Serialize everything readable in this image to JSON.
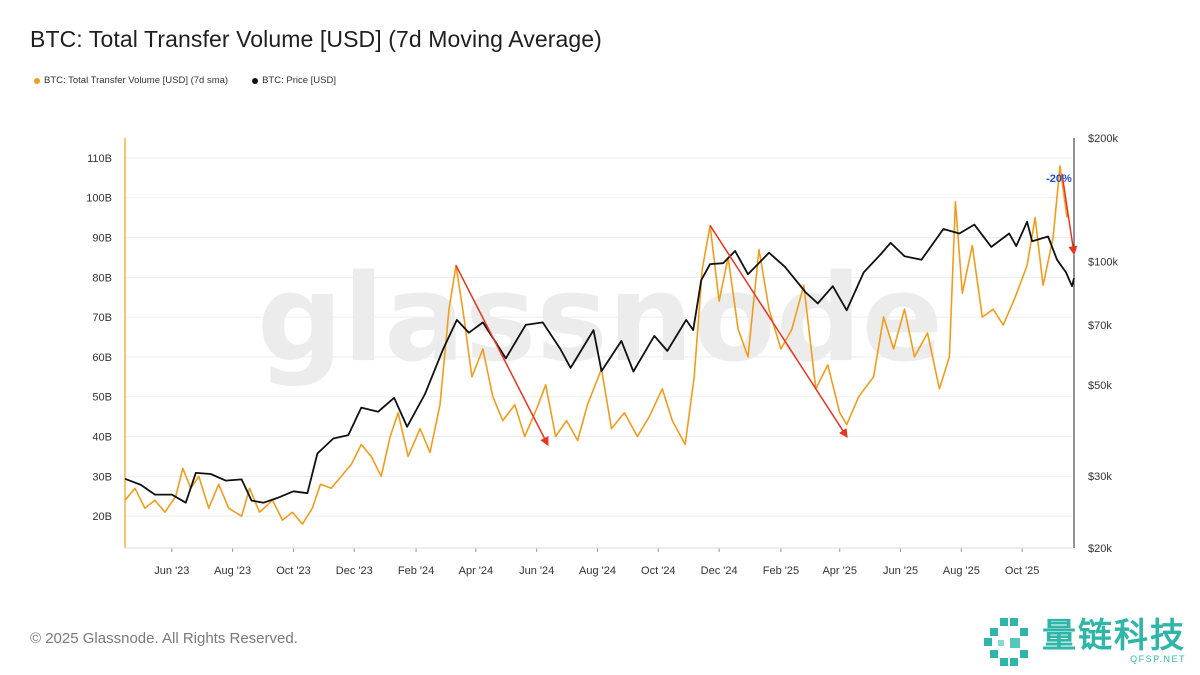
{
  "title": "BTC: Total Transfer Volume [USD] (7d Moving Average)",
  "legend": [
    {
      "label": "BTC: Total Transfer Volume [USD] (7d sma)",
      "color": "#f39c1c"
    },
    {
      "label": "BTC: Price [USD]",
      "color": "#111111"
    }
  ],
  "watermark": "glassnode",
  "copyright": "© 2025 Glassnode. All Rights Reserved.",
  "logo": {
    "name": "量链科技",
    "url": "QFSP.NET",
    "color": "#2fb6a8"
  },
  "chart_data": {
    "type": "line",
    "title": "BTC: Total Transfer Volume [USD] (7d Moving Average)",
    "x_range": [
      "2023-04-15",
      "2025-11-20"
    ],
    "x_ticks": [
      "Jun '23",
      "Aug '23",
      "Oct '23",
      "Dec '23",
      "Feb '24",
      "Apr '24",
      "Jun '24",
      "Aug '24",
      "Oct '24",
      "Dec '24",
      "Feb '25",
      "Apr '25",
      "Jun '25",
      "Aug '25",
      "Oct '25"
    ],
    "x_tick_dates": [
      "2023-06-01",
      "2023-08-01",
      "2023-10-01",
      "2023-12-01",
      "2024-02-01",
      "2024-04-01",
      "2024-06-01",
      "2024-08-01",
      "2024-10-01",
      "2024-12-01",
      "2025-02-01",
      "2025-04-01",
      "2025-06-01",
      "2025-08-01",
      "2025-10-01"
    ],
    "y_left": {
      "unit": "USD",
      "ticks": [
        20,
        30,
        40,
        50,
        60,
        70,
        80,
        90,
        100,
        110
      ],
      "tick_labels": [
        "20B",
        "30B",
        "40B",
        "50B",
        "60B",
        "70B",
        "80B",
        "90B",
        "100B",
        "110B"
      ],
      "range": [
        12,
        115
      ]
    },
    "y_right": {
      "unit": "USD",
      "scale": "log",
      "ticks": [
        20000,
        30000,
        50000,
        70000,
        100000,
        200000
      ],
      "tick_labels": [
        "$20k",
        "$30k",
        "$50k",
        "$70k",
        "$100k",
        "$200k"
      ],
      "range": [
        20000,
        200000
      ]
    },
    "series": [
      {
        "name": "BTC: Total Transfer Volume [USD] (7d sma)",
        "axis": "left",
        "color": "#f39c1c",
        "points": [
          [
            "2023-04-15",
            24
          ],
          [
            "2023-04-25",
            27
          ],
          [
            "2023-05-05",
            22
          ],
          [
            "2023-05-15",
            24
          ],
          [
            "2023-05-25",
            21
          ],
          [
            "2023-06-05",
            25
          ],
          [
            "2023-06-12",
            32
          ],
          [
            "2023-06-20",
            27
          ],
          [
            "2023-06-28",
            30
          ],
          [
            "2023-07-08",
            22
          ],
          [
            "2023-07-18",
            28
          ],
          [
            "2023-07-28",
            22
          ],
          [
            "2023-08-10",
            20
          ],
          [
            "2023-08-18",
            27
          ],
          [
            "2023-08-28",
            21
          ],
          [
            "2023-09-10",
            24
          ],
          [
            "2023-09-20",
            19
          ],
          [
            "2023-09-30",
            21
          ],
          [
            "2023-10-10",
            18
          ],
          [
            "2023-10-20",
            22
          ],
          [
            "2023-10-28",
            28
          ],
          [
            "2023-11-08",
            27
          ],
          [
            "2023-11-18",
            30
          ],
          [
            "2023-11-28",
            33
          ],
          [
            "2023-12-08",
            38
          ],
          [
            "2023-12-18",
            35
          ],
          [
            "2023-12-28",
            30
          ],
          [
            "2024-01-06",
            40
          ],
          [
            "2024-01-14",
            46
          ],
          [
            "2024-01-24",
            35
          ],
          [
            "2024-02-05",
            42
          ],
          [
            "2024-02-15",
            36
          ],
          [
            "2024-02-25",
            48
          ],
          [
            "2024-03-05",
            72
          ],
          [
            "2024-03-12",
            83
          ],
          [
            "2024-03-20",
            70
          ],
          [
            "2024-03-28",
            55
          ],
          [
            "2024-04-08",
            62
          ],
          [
            "2024-04-18",
            50
          ],
          [
            "2024-04-28",
            44
          ],
          [
            "2024-05-10",
            48
          ],
          [
            "2024-05-20",
            40
          ],
          [
            "2024-06-01",
            47
          ],
          [
            "2024-06-10",
            53
          ],
          [
            "2024-06-20",
            40
          ],
          [
            "2024-07-01",
            44
          ],
          [
            "2024-07-12",
            39
          ],
          [
            "2024-07-22",
            48
          ],
          [
            "2024-08-05",
            57
          ],
          [
            "2024-08-15",
            42
          ],
          [
            "2024-08-28",
            46
          ],
          [
            "2024-09-10",
            40
          ],
          [
            "2024-09-22",
            45
          ],
          [
            "2024-10-05",
            52
          ],
          [
            "2024-10-15",
            44
          ],
          [
            "2024-10-28",
            38
          ],
          [
            "2024-11-06",
            55
          ],
          [
            "2024-11-14",
            82
          ],
          [
            "2024-11-22",
            93
          ],
          [
            "2024-12-01",
            74
          ],
          [
            "2024-12-10",
            85
          ],
          [
            "2024-12-20",
            67
          ],
          [
            "2024-12-30",
            60
          ],
          [
            "2025-01-10",
            87
          ],
          [
            "2025-01-20",
            72
          ],
          [
            "2025-02-01",
            62
          ],
          [
            "2025-02-12",
            67
          ],
          [
            "2025-02-24",
            78
          ],
          [
            "2025-03-08",
            52
          ],
          [
            "2025-03-20",
            58
          ],
          [
            "2025-04-01",
            46
          ],
          [
            "2025-04-08",
            43
          ],
          [
            "2025-04-20",
            50
          ],
          [
            "2025-05-05",
            55
          ],
          [
            "2025-05-15",
            70
          ],
          [
            "2025-05-25",
            62
          ],
          [
            "2025-06-05",
            72
          ],
          [
            "2025-06-15",
            60
          ],
          [
            "2025-06-28",
            66
          ],
          [
            "2025-07-10",
            52
          ],
          [
            "2025-07-20",
            60
          ],
          [
            "2025-07-26",
            99
          ],
          [
            "2025-08-02",
            76
          ],
          [
            "2025-08-12",
            88
          ],
          [
            "2025-08-22",
            70
          ],
          [
            "2025-09-02",
            72
          ],
          [
            "2025-09-12",
            68
          ],
          [
            "2025-09-24",
            75
          ],
          [
            "2025-10-06",
            83
          ],
          [
            "2025-10-14",
            95
          ],
          [
            "2025-10-22",
            78
          ],
          [
            "2025-11-01",
            90
          ],
          [
            "2025-11-08",
            108
          ],
          [
            "2025-11-15",
            95
          ]
        ]
      },
      {
        "name": "BTC: Price [USD]",
        "axis": "right",
        "color": "#111111",
        "points": [
          [
            "2023-04-15",
            29500
          ],
          [
            "2023-05-01",
            28500
          ],
          [
            "2023-05-15",
            27000
          ],
          [
            "2023-06-01",
            27000
          ],
          [
            "2023-06-15",
            25800
          ],
          [
            "2023-06-25",
            30500
          ],
          [
            "2023-07-10",
            30300
          ],
          [
            "2023-07-25",
            29200
          ],
          [
            "2023-08-10",
            29400
          ],
          [
            "2023-08-20",
            26100
          ],
          [
            "2023-09-01",
            25800
          ],
          [
            "2023-09-15",
            26500
          ],
          [
            "2023-10-01",
            27500
          ],
          [
            "2023-10-15",
            27200
          ],
          [
            "2023-10-25",
            34000
          ],
          [
            "2023-11-10",
            37000
          ],
          [
            "2023-11-25",
            37700
          ],
          [
            "2023-12-08",
            44000
          ],
          [
            "2023-12-25",
            43000
          ],
          [
            "2024-01-10",
            46500
          ],
          [
            "2024-01-23",
            39500
          ],
          [
            "2024-02-10",
            47500
          ],
          [
            "2024-02-28",
            61000
          ],
          [
            "2024-03-13",
            72000
          ],
          [
            "2024-03-25",
            67000
          ],
          [
            "2024-04-08",
            71000
          ],
          [
            "2024-04-20",
            64000
          ],
          [
            "2024-05-01",
            58000
          ],
          [
            "2024-05-21",
            70000
          ],
          [
            "2024-06-07",
            71000
          ],
          [
            "2024-06-25",
            61000
          ],
          [
            "2024-07-05",
            55000
          ],
          [
            "2024-07-28",
            68000
          ],
          [
            "2024-08-05",
            54000
          ],
          [
            "2024-08-25",
            64000
          ],
          [
            "2024-09-06",
            53900
          ],
          [
            "2024-09-27",
            65800
          ],
          [
            "2024-10-10",
            60500
          ],
          [
            "2024-10-29",
            72000
          ],
          [
            "2024-11-05",
            68000
          ],
          [
            "2024-11-13",
            90000
          ],
          [
            "2024-11-22",
            98500
          ],
          [
            "2024-12-05",
            99000
          ],
          [
            "2024-12-17",
            106000
          ],
          [
            "2024-12-30",
            93000
          ],
          [
            "2025-01-20",
            105000
          ],
          [
            "2025-02-05",
            97000
          ],
          [
            "2025-02-26",
            84000
          ],
          [
            "2025-03-10",
            79000
          ],
          [
            "2025-03-25",
            87000
          ],
          [
            "2025-04-08",
            76000
          ],
          [
            "2025-04-25",
            94000
          ],
          [
            "2025-05-12",
            104000
          ],
          [
            "2025-05-22",
            111000
          ],
          [
            "2025-06-05",
            103000
          ],
          [
            "2025-06-22",
            101000
          ],
          [
            "2025-07-14",
            120000
          ],
          [
            "2025-07-30",
            117000
          ],
          [
            "2025-08-14",
            123000
          ],
          [
            "2025-08-31",
            108500
          ],
          [
            "2025-09-18",
            117000
          ],
          [
            "2025-09-25",
            109000
          ],
          [
            "2025-10-06",
            125000
          ],
          [
            "2025-10-11",
            112000
          ],
          [
            "2025-10-27",
            115000
          ],
          [
            "2025-11-05",
            101000
          ],
          [
            "2025-11-14",
            94000
          ],
          [
            "2025-11-20",
            87000
          ],
          [
            "2025-11-22",
            91000
          ]
        ]
      }
    ],
    "annotations": [
      {
        "type": "arrow",
        "axis": "left",
        "color": "#e8351f",
        "from": [
          "2024-03-12",
          83
        ],
        "to": [
          "2024-06-12",
          38
        ]
      },
      {
        "type": "arrow",
        "axis": "left",
        "color": "#e8351f",
        "from": [
          "2024-11-22",
          93
        ],
        "to": [
          "2025-04-08",
          40
        ]
      },
      {
        "type": "arrow",
        "axis": "left",
        "color": "#e8351f",
        "from": [
          "2025-11-10",
          106
        ],
        "to": [
          "2025-11-22",
          86
        ]
      },
      {
        "type": "label",
        "text": "-20%",
        "color": "#1f4fd8",
        "at": [
          "2025-10-25",
          104
        ]
      }
    ],
    "grid": true,
    "legend_position": "top-left"
  }
}
